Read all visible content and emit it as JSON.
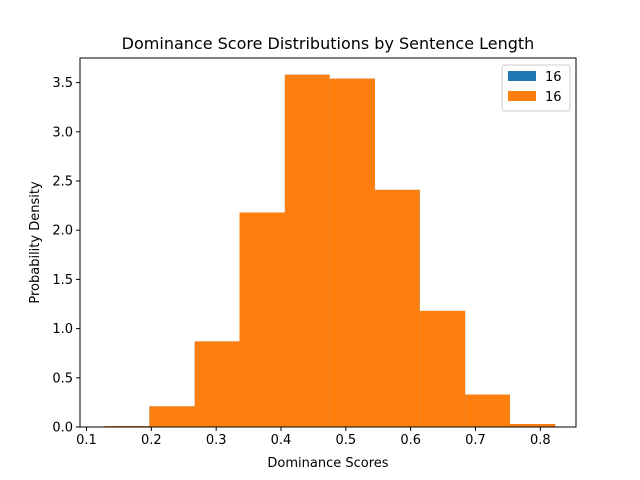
{
  "chart_data": {
    "type": "bar",
    "title": "Dominance Score Distributions by Sentence Length",
    "xlabel": "Dominance Scores",
    "ylabel": "Probability Density",
    "xlim": [
      0.09,
      0.855
    ],
    "ylim": [
      0,
      3.75
    ],
    "xticks": [
      0.1,
      0.2,
      0.3,
      0.4,
      0.5,
      0.6,
      0.7,
      0.8
    ],
    "xtick_labels": [
      "0.1",
      "0.2",
      "0.3",
      "0.4",
      "0.5",
      "0.6",
      "0.7",
      "0.8"
    ],
    "yticks": [
      0.0,
      0.5,
      1.0,
      1.5,
      2.0,
      2.5,
      3.0,
      3.5
    ],
    "ytick_labels": [
      "0.0",
      "0.5",
      "1.0",
      "1.5",
      "2.0",
      "2.5",
      "3.0",
      "3.5"
    ],
    "grid": false,
    "legend_position": "top-right",
    "series": [
      {
        "name": "16",
        "color": "#1f77b4",
        "bin_edges": [
          0.128,
          0.197,
          0.267,
          0.336,
          0.406,
          0.475,
          0.545,
          0.614,
          0.684,
          0.753,
          0.823
        ],
        "values": [
          0.01,
          0.21,
          0.87,
          2.18,
          3.58,
          3.54,
          2.41,
          1.18,
          0.33,
          0.03
        ]
      },
      {
        "name": "16",
        "color": "#ff7f0e",
        "bin_edges": [
          0.128,
          0.197,
          0.267,
          0.336,
          0.406,
          0.475,
          0.545,
          0.614,
          0.684,
          0.753,
          0.823
        ],
        "values": [
          0.01,
          0.21,
          0.87,
          2.18,
          3.58,
          3.54,
          2.41,
          1.18,
          0.33,
          0.03
        ]
      }
    ]
  }
}
